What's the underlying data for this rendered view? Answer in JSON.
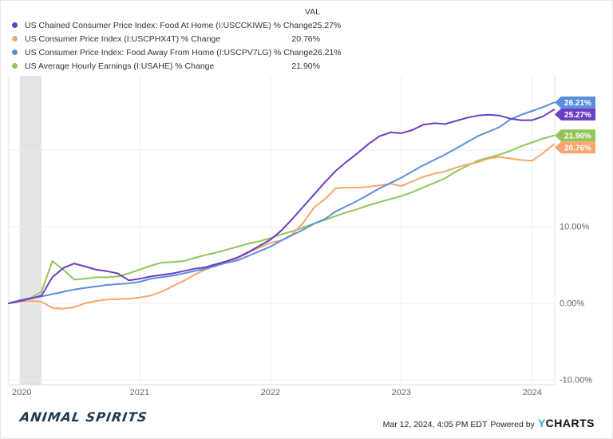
{
  "legend": {
    "val_header": "VAL",
    "items": [
      {
        "label": "US Chained Consumer Price Index: Food At Home (I:USCCKIWE) % Change",
        "val": "25.27%",
        "color": "#6a3fc3"
      },
      {
        "label": "US Consumer Price Index (I:USCPHX4T) % Change",
        "val": "20.76%",
        "color": "#f8a66e"
      },
      {
        "label": "US Consumer Price Index: Food Away From Home (I:USCPV7LG) % Change",
        "val": "26.21%",
        "color": "#5b8edc"
      },
      {
        "label": "US Average Hourly Earnings (I:USAHE) % Change",
        "val": "21.90%",
        "color": "#92c558"
      }
    ]
  },
  "chart_data": {
    "type": "line",
    "title": "",
    "grid": true,
    "x_labels": [
      "2020-01",
      "2020-02",
      "2020-03",
      "2020-04",
      "2020-05",
      "2020-06",
      "2020-07",
      "2020-08",
      "2020-09",
      "2020-10",
      "2020-11",
      "2020-12",
      "2021-01",
      "2021-02",
      "2021-03",
      "2021-04",
      "2021-05",
      "2021-06",
      "2021-07",
      "2021-08",
      "2021-09",
      "2021-10",
      "2021-11",
      "2021-12",
      "2022-01",
      "2022-02",
      "2022-03",
      "2022-04",
      "2022-05",
      "2022-06",
      "2022-07",
      "2022-08",
      "2022-09",
      "2022-10",
      "2022-11",
      "2022-12",
      "2023-01",
      "2023-02",
      "2023-03",
      "2023-04",
      "2023-05",
      "2023-06",
      "2023-07",
      "2023-08",
      "2023-09",
      "2023-10",
      "2023-11",
      "2023-12",
      "2024-01",
      "2024-02",
      "2024-03"
    ],
    "x_axis_ticks": [
      {
        "month_index": 0,
        "label": "2020"
      },
      {
        "month_index": 12,
        "label": "2021"
      },
      {
        "month_index": 24,
        "label": "2022"
      },
      {
        "month_index": 36,
        "label": "2023"
      },
      {
        "month_index": 48,
        "label": "2024"
      }
    ],
    "y_axis": {
      "unit": "%",
      "ylim": [
        -10.6,
        29.7
      ],
      "ticks": [
        {
          "value": 20,
          "label": ""
        },
        {
          "value": 10,
          "label": "10.00%"
        },
        {
          "value": 0,
          "label": "0.00%"
        },
        {
          "value": -10,
          "label": "-10.00%"
        }
      ]
    },
    "recession_band": {
      "start": "2020-02",
      "end": "2020-04",
      "from_month_index": 1,
      "to_month_index": 3
    },
    "series": [
      {
        "name": "US Average Hourly Earnings (I:USAHE) % Change",
        "color": "#92c558",
        "end_label": "21.90%",
        "end_value": 21.9,
        "values": [
          0,
          0.3,
          0.7,
          1.5,
          5.5,
          4.4,
          3.1,
          3.2,
          3.4,
          3.4,
          3.5,
          3.9,
          4.4,
          4.9,
          5.3,
          5.4,
          5.5,
          5.9,
          6.3,
          6.6,
          7.0,
          7.4,
          7.8,
          8.1,
          8.5,
          9.0,
          9.4,
          9.9,
          10.4,
          10.9,
          11.4,
          11.9,
          12.3,
          12.8,
          13.2,
          13.6,
          14.0,
          14.5,
          15.1,
          15.7,
          16.3,
          17.2,
          17.9,
          18.6,
          19.0,
          19.4,
          19.9,
          20.5,
          21.0,
          21.5,
          21.9
        ]
      },
      {
        "name": "US Consumer Price Index (I:USCPHX4T) % Change",
        "color": "#f8a66e",
        "end_label": "20.76%",
        "end_value": 20.76,
        "values": [
          0,
          0.2,
          0.3,
          0.2,
          -0.6,
          -0.7,
          -0.5,
          0.0,
          0.3,
          0.5,
          0.55,
          0.6,
          0.75,
          1.0,
          1.5,
          2.2,
          2.9,
          3.7,
          4.4,
          4.9,
          5.4,
          5.9,
          6.6,
          7.3,
          7.9,
          8.2,
          9.0,
          10.5,
          12.5,
          13.6,
          15.0,
          15.1,
          15.1,
          15.2,
          15.4,
          15.6,
          15.3,
          15.9,
          16.5,
          16.9,
          17.2,
          17.7,
          18.1,
          18.4,
          18.9,
          19.1,
          18.9,
          18.7,
          18.6,
          19.6,
          20.76
        ]
      },
      {
        "name": "US Consumer Price Index: Food Away From Home (I:USCPV7LG) % Change",
        "color": "#5b8edc",
        "end_label": "26.21%",
        "end_value": 26.21,
        "values": [
          0,
          0.4,
          0.7,
          0.9,
          1.2,
          1.5,
          1.8,
          2.0,
          2.2,
          2.4,
          2.5,
          2.6,
          2.8,
          3.2,
          3.4,
          3.6,
          3.9,
          4.2,
          4.5,
          4.9,
          5.3,
          5.6,
          6.2,
          6.8,
          7.4,
          8.2,
          8.9,
          9.6,
          10.4,
          11.0,
          12.0,
          12.7,
          13.4,
          14.2,
          15.0,
          15.7,
          16.4,
          17.2,
          18.0,
          18.7,
          19.4,
          20.2,
          21.0,
          21.8,
          22.4,
          23.0,
          24.0,
          24.6,
          25.1,
          25.6,
          26.21
        ]
      },
      {
        "name": "US Chained Consumer Price Index: Food At Home (I:USCCKIWE) % Change",
        "color": "#6a3fc3",
        "end_label": "25.27%",
        "end_value": 25.27,
        "values": [
          0,
          0.3,
          0.6,
          1.0,
          3.4,
          4.6,
          5.2,
          4.8,
          4.4,
          4.2,
          3.9,
          3.0,
          3.2,
          3.5,
          3.7,
          3.9,
          4.2,
          4.5,
          4.7,
          5.1,
          5.5,
          6.0,
          6.7,
          7.5,
          8.3,
          9.5,
          11.0,
          12.6,
          14.2,
          15.8,
          17.3,
          18.5,
          19.6,
          20.8,
          21.8,
          22.3,
          22.2,
          22.6,
          23.3,
          23.5,
          23.4,
          23.8,
          24.2,
          24.5,
          24.6,
          24.5,
          24.1,
          23.9,
          23.9,
          24.4,
          25.27
        ]
      }
    ],
    "legend_position": "top-left"
  },
  "footer": {
    "brand_logo_text": "ANIMAL SPIRITS",
    "timestamp": "Mar 12, 2024, 4:05 PM EDT",
    "powered_by": "Powered by",
    "ycharts_y": "Y",
    "ycharts_rest": "CHARTS"
  }
}
